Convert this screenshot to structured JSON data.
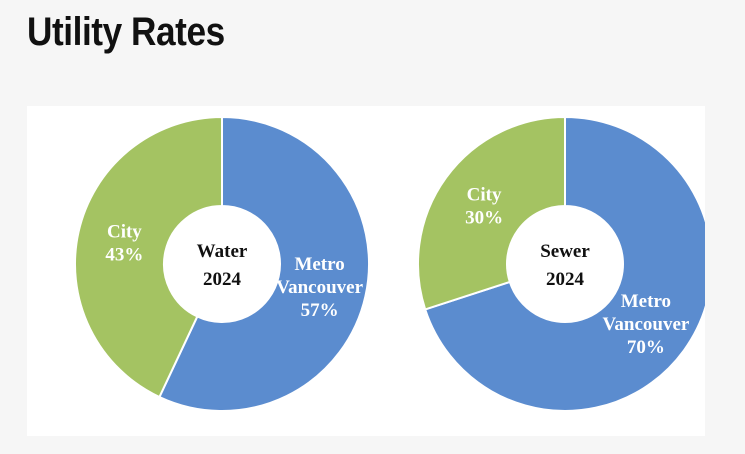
{
  "page": {
    "title": "Utility Rates"
  },
  "colors": {
    "metro": "#5b8ccf",
    "city": "#a4c362",
    "stroke": "#ffffff"
  },
  "chart_data": [
    {
      "type": "pie",
      "center_label": [
        "Water",
        "2024"
      ],
      "slices": [
        {
          "label": [
            "Metro",
            "Vancouver"
          ],
          "percent_label": "57%",
          "value": 57,
          "color": "#5b8ccf"
        },
        {
          "label": [
            "City"
          ],
          "percent_label": "43%",
          "value": 43,
          "color": "#a4c362"
        }
      ]
    },
    {
      "type": "pie",
      "center_label": [
        "Sewer",
        "2024"
      ],
      "slices": [
        {
          "label": [
            "Metro",
            "Vancouver"
          ],
          "percent_label": "70%",
          "value": 70,
          "color": "#5b8ccf"
        },
        {
          "label": [
            "City"
          ],
          "percent_label": "30%",
          "value": 30,
          "color": "#a4c362"
        }
      ]
    }
  ]
}
